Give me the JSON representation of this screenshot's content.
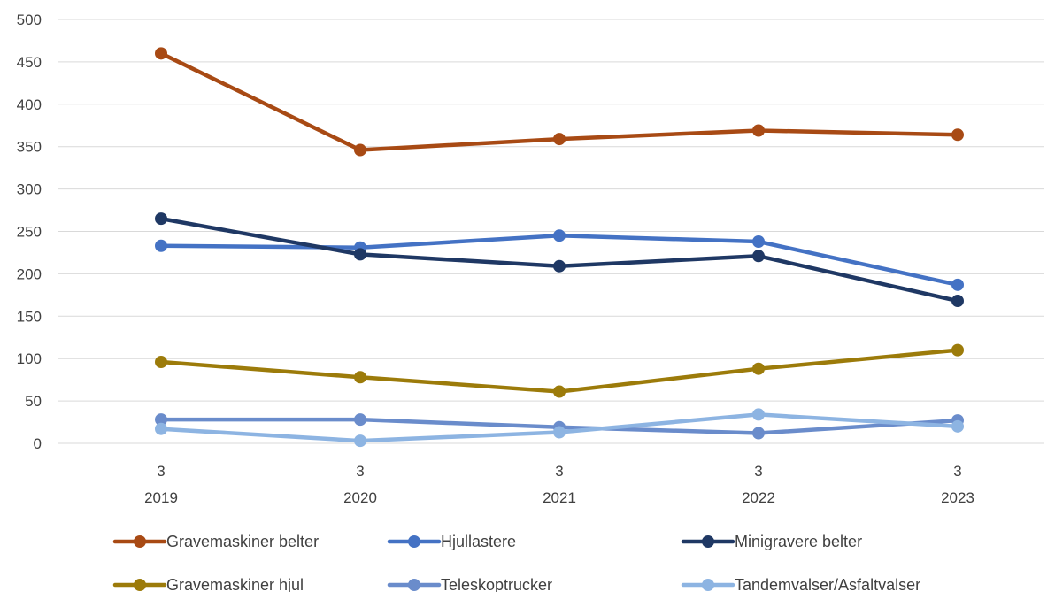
{
  "chart_data": {
    "type": "line",
    "title": "",
    "xlabel": "",
    "ylabel": "",
    "categories": [
      {
        "top": "3",
        "bottom": "2019"
      },
      {
        "top": "3",
        "bottom": "2020"
      },
      {
        "top": "3",
        "bottom": "2021"
      },
      {
        "top": "3",
        "bottom": "2022"
      },
      {
        "top": "3",
        "bottom": "2023"
      }
    ],
    "ylim": [
      0,
      500
    ],
    "yticks": [
      0,
      50,
      100,
      150,
      200,
      250,
      300,
      350,
      400,
      450,
      500
    ],
    "grid": "horizontal",
    "legend_position": "bottom",
    "series": [
      {
        "name": "Gravemaskiner belter",
        "color": "#A84A14",
        "values": [
          460,
          346,
          359,
          369,
          364
        ]
      },
      {
        "name": "Hjullastere",
        "color": "#4472C4",
        "values": [
          233,
          231,
          245,
          238,
          187
        ]
      },
      {
        "name": "Minigravere belter",
        "color": "#1F3864",
        "values": [
          265,
          223,
          209,
          221,
          168
        ]
      },
      {
        "name": "Gravemaskiner hjul",
        "color": "#9C7B0A",
        "values": [
          96,
          78,
          61,
          88,
          110
        ]
      },
      {
        "name": "Teleskoptrucker",
        "color": "#6A8CCB",
        "values": [
          28,
          28,
          19,
          12,
          27
        ]
      },
      {
        "name": "Tandemvalser/Asfaltvalser",
        "color": "#8DB4E2",
        "values": [
          17,
          3,
          13,
          34,
          20
        ]
      }
    ]
  }
}
